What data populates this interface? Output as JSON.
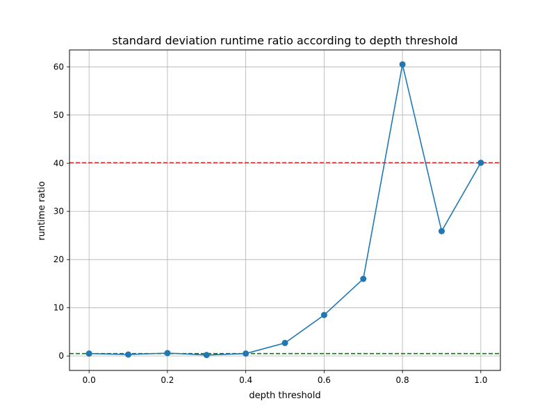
{
  "chart_data": {
    "type": "line",
    "title": "standard deviation runtime ratio according to depth threshold",
    "xlabel": "depth threshold",
    "ylabel": "runtime ratio",
    "xlim": [
      -0.05,
      1.05
    ],
    "ylim": [
      -3.0,
      63.5
    ],
    "xticks": [
      0.0,
      0.2,
      0.4,
      0.6,
      0.8,
      1.0
    ],
    "xtick_labels": [
      "0.0",
      "0.2",
      "0.4",
      "0.6",
      "0.8",
      "1.0"
    ],
    "yticks": [
      0,
      10,
      20,
      30,
      40,
      50,
      60
    ],
    "ytick_labels": [
      "0",
      "10",
      "20",
      "30",
      "40",
      "50",
      "60"
    ],
    "grid": true,
    "series": [
      {
        "color": "#1f77b4",
        "marker": "circle",
        "x": [
          0.0,
          0.1,
          0.2,
          0.3,
          0.4,
          0.5,
          0.6,
          0.7,
          0.8,
          0.9,
          1.0
        ],
        "y": [
          0.5,
          0.3,
          0.6,
          0.2,
          0.5,
          2.7,
          8.5,
          16.0,
          60.5,
          25.9,
          40.1
        ]
      }
    ],
    "reference_lines": [
      {
        "y": 40.1,
        "color": "#d62728",
        "style": "dashed"
      },
      {
        "y": 0.5,
        "color": "#008000",
        "style": "dashed"
      }
    ]
  }
}
